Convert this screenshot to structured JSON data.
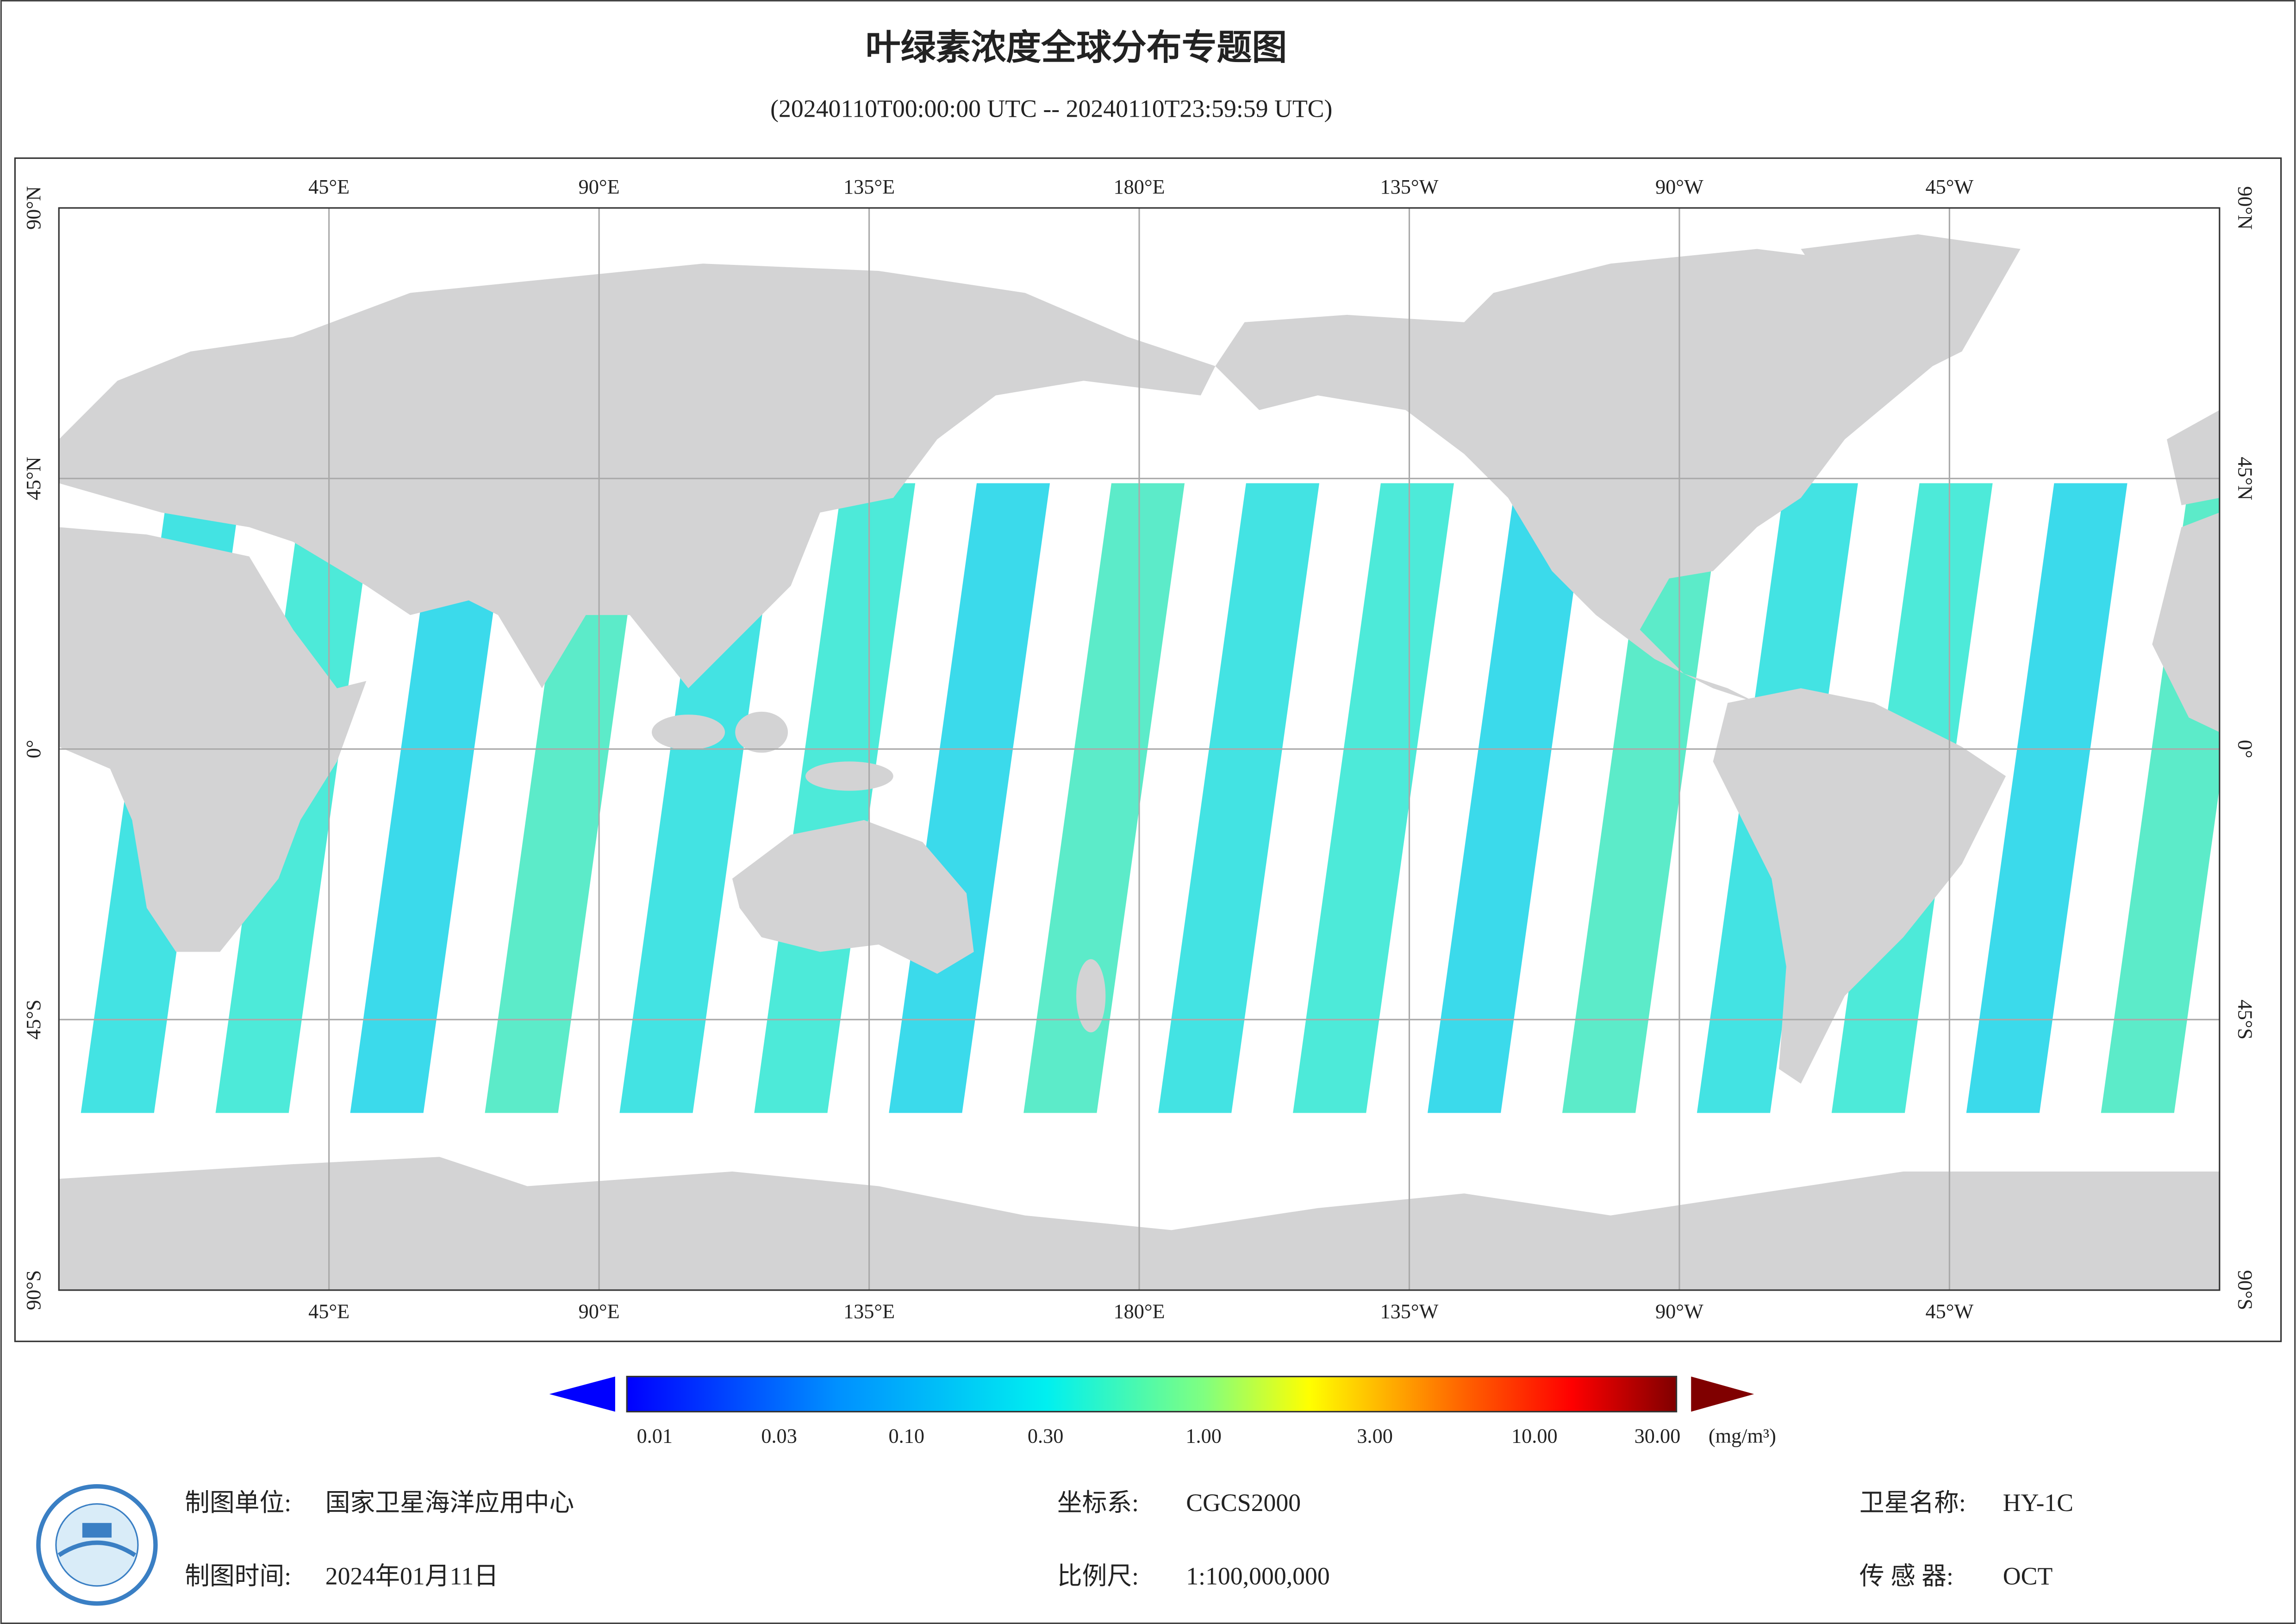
{
  "header": {
    "title": "叶绿素浓度全球分布专题图",
    "subtitle": "(20240110T00:00:00 UTC -- 20240110T23:59:59 UTC)"
  },
  "map": {
    "lon_labels": [
      "45°E",
      "90°E",
      "135°E",
      "180°E",
      "135°W",
      "90°W",
      "45°W"
    ],
    "lat_labels": [
      "90°N",
      "45°N",
      "0°",
      "45°S",
      "90°S"
    ]
  },
  "legend": {
    "ticks": [
      "0.01",
      "0.03",
      "0.10",
      "0.30",
      "1.00",
      "3.00",
      "10.00",
      "30.00"
    ],
    "unit": "(mg/m³)"
  },
  "footer": {
    "producer_label": "制图单位:",
    "producer": "国家卫星海洋应用中心",
    "date_label": "制图时间:",
    "date": "2024年01月11日",
    "crs_label": "坐标系:",
    "crs": "CGCS2000",
    "scale_label": "比例尺:",
    "scale": "1:100,000,000",
    "satellite_label": "卫星名称:",
    "satellite": "HY-1C",
    "sensor_label": "传 感 器:",
    "sensor": "OCT"
  }
}
